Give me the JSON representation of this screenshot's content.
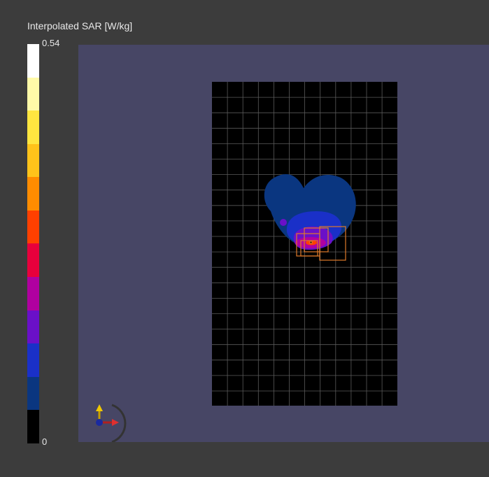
{
  "legend": {
    "title": "Interpolated SAR [W/kg]",
    "max_label": "0.54",
    "min_label": "0",
    "colors": [
      "#ffffff",
      "#fffaa8",
      "#ffe640",
      "#ffc31a",
      "#ff8c00",
      "#ff4000",
      "#e8003c",
      "#b000a0",
      "#6a10c8",
      "#1a30c8",
      "#0a3680",
      "#000000"
    ]
  },
  "viewport": {
    "background": "#474665",
    "phantom_color": "#000000",
    "grid_color": "#5a5a5a",
    "marker_color": "#e07a2a",
    "axis_icon": "xyz-axis-triad-icon"
  }
}
